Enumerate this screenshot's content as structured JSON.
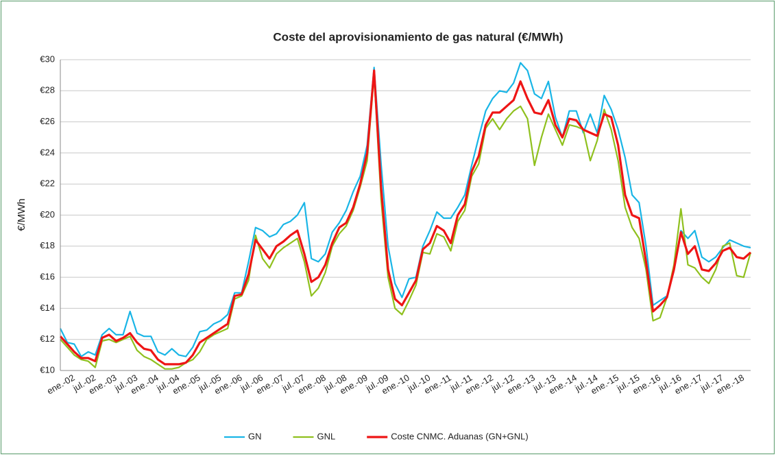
{
  "chart_data": {
    "type": "line",
    "title": "Coste del aprovisionamiento  de gas natural (€/MWh)",
    "y_label": "€/MWh",
    "categories": [
      null,
      null,
      "ene.-02",
      null,
      null,
      "jul.-02",
      null,
      null,
      "ene.-03",
      null,
      null,
      "jul.-03",
      null,
      null,
      "ene.-04",
      null,
      null,
      "jul.-04",
      null,
      null,
      "ene.-05",
      null,
      null,
      "jul.-05",
      null,
      null,
      "ene.-06",
      null,
      null,
      "jul.-06",
      null,
      null,
      "ene.-07",
      null,
      null,
      "jul.-07",
      null,
      null,
      "ene.-08",
      null,
      null,
      "jul.-08",
      null,
      null,
      "ene.-09",
      null,
      null,
      "jul.-09",
      null,
      null,
      "ene.-10",
      null,
      null,
      "jul.-10",
      null,
      null,
      "ene.-11",
      null,
      null,
      "jul.-11",
      null,
      null,
      "ene.-12",
      null,
      null,
      "jul.-12",
      null,
      null,
      "ene.-13",
      null,
      null,
      "jul.-13",
      null,
      null,
      "ene.-14",
      null,
      null,
      "jul.-14",
      null,
      null,
      "ene.-15",
      null,
      null,
      "jul.-15",
      null,
      null,
      "ene.-16",
      null,
      null,
      "jul.-16",
      null,
      null,
      "ene.-17",
      null,
      null,
      "jul.-17",
      null,
      null,
      "ene.-18",
      null
    ],
    "series": [
      {
        "name": "GN",
        "color": "#19b5e6",
        "width": 2.2,
        "values": [
          12.7,
          11.8,
          11.7,
          10.9,
          11.2,
          11.0,
          12.3,
          12.7,
          12.3,
          12.3,
          13.8,
          12.4,
          12.2,
          12.2,
          11.2,
          11.0,
          11.4,
          11.0,
          10.9,
          11.5,
          12.5,
          12.6,
          13.0,
          13.2,
          13.6,
          15.0,
          15.0,
          17.0,
          19.2,
          19.0,
          18.6,
          18.8,
          19.4,
          19.6,
          20.0,
          20.8,
          17.2,
          17.0,
          17.5,
          18.9,
          19.5,
          20.3,
          21.5,
          22.5,
          24.5,
          29.5,
          23.3,
          18.0,
          15.6,
          14.7,
          15.9,
          16.0,
          18.0,
          19.0,
          20.2,
          19.8,
          19.8,
          20.5,
          21.3,
          23.2,
          25.0,
          26.7,
          27.5,
          28.0,
          27.9,
          28.5,
          29.8,
          29.3,
          27.8,
          27.5,
          28.6,
          26.3,
          25.0,
          26.7,
          26.7,
          25.3,
          26.5,
          25.3,
          27.7,
          26.8,
          25.5,
          23.7,
          21.3,
          20.8,
          18.0,
          14.2,
          14.5,
          14.8,
          16.4,
          19.0,
          18.5,
          19.0,
          17.3,
          17.0,
          17.3,
          17.9,
          18.4,
          18.2,
          18.0,
          17.9
        ]
      },
      {
        "name": "GNL",
        "color": "#8fc01e",
        "width": 2.2,
        "values": [
          12.0,
          11.5,
          11.0,
          10.7,
          10.6,
          10.2,
          11.9,
          12.0,
          11.8,
          12.0,
          12.2,
          11.3,
          10.9,
          10.7,
          10.4,
          10.1,
          10.1,
          10.2,
          10.5,
          10.7,
          11.2,
          12.0,
          12.3,
          12.5,
          12.7,
          14.6,
          14.8,
          15.8,
          18.7,
          17.2,
          16.6,
          17.5,
          17.9,
          18.2,
          18.5,
          17.0,
          14.8,
          15.3,
          16.3,
          18.0,
          18.8,
          19.3,
          20.3,
          21.8,
          23.5,
          29.0,
          21.0,
          16.0,
          14.0,
          13.6,
          14.5,
          15.5,
          17.6,
          17.5,
          18.8,
          18.6,
          17.7,
          19.6,
          20.3,
          22.5,
          23.3,
          25.6,
          26.2,
          25.5,
          26.2,
          26.7,
          27.0,
          26.2,
          23.2,
          25.0,
          26.5,
          25.5,
          24.5,
          25.8,
          25.7,
          25.5,
          23.5,
          24.8,
          26.8,
          25.5,
          23.5,
          20.5,
          19.2,
          18.5,
          16.5,
          13.2,
          13.4,
          14.7,
          16.8,
          20.4,
          16.8,
          16.6,
          16.0,
          15.6,
          16.5,
          18.0,
          18.2,
          16.1,
          16.0,
          17.6
        ]
      },
      {
        "name": "Coste CNMC. Aduanas (GN+GNL)",
        "color": "#ee1515",
        "width": 3.2,
        "values": [
          12.2,
          11.7,
          11.2,
          10.8,
          10.8,
          10.6,
          12.1,
          12.3,
          11.9,
          12.1,
          12.4,
          11.8,
          11.4,
          11.3,
          10.7,
          10.4,
          10.4,
          10.4,
          10.5,
          11.0,
          11.8,
          12.1,
          12.4,
          12.7,
          13.0,
          14.8,
          14.9,
          16.2,
          18.4,
          17.8,
          17.2,
          18.0,
          18.3,
          18.7,
          19.0,
          17.5,
          15.7,
          16.0,
          16.8,
          18.2,
          19.2,
          19.5,
          20.5,
          22.0,
          24.0,
          29.3,
          21.8,
          16.5,
          14.6,
          14.2,
          15.0,
          15.8,
          17.8,
          18.2,
          19.3,
          19.0,
          18.2,
          20.0,
          20.7,
          22.8,
          23.8,
          25.8,
          26.6,
          26.6,
          27.0,
          27.4,
          28.6,
          27.5,
          26.6,
          26.5,
          27.4,
          25.8,
          25.0,
          26.2,
          26.1,
          25.5,
          25.3,
          25.1,
          26.5,
          26.3,
          24.5,
          21.3,
          20.0,
          19.8,
          17.0,
          13.8,
          14.2,
          14.7,
          16.5,
          18.9,
          17.5,
          18.0,
          16.5,
          16.4,
          16.9,
          17.7,
          17.9,
          17.3,
          17.2,
          17.6
        ]
      }
    ],
    "ylim": [
      10,
      30
    ],
    "yticks": [
      {
        "value": 10,
        "label": "€10"
      },
      {
        "value": 12,
        "label": "€12"
      },
      {
        "value": 14,
        "label": "€14"
      },
      {
        "value": 16,
        "label": "€16"
      },
      {
        "value": 18,
        "label": "€18"
      },
      {
        "value": 20,
        "label": "€20"
      },
      {
        "value": 22,
        "label": "€22"
      },
      {
        "value": 24,
        "label": "€24"
      },
      {
        "value": 26,
        "label": "€26"
      },
      {
        "value": 28,
        "label": "€28"
      },
      {
        "value": 30,
        "label": "€30"
      }
    ],
    "grid": true,
    "legend": "bottom"
  }
}
